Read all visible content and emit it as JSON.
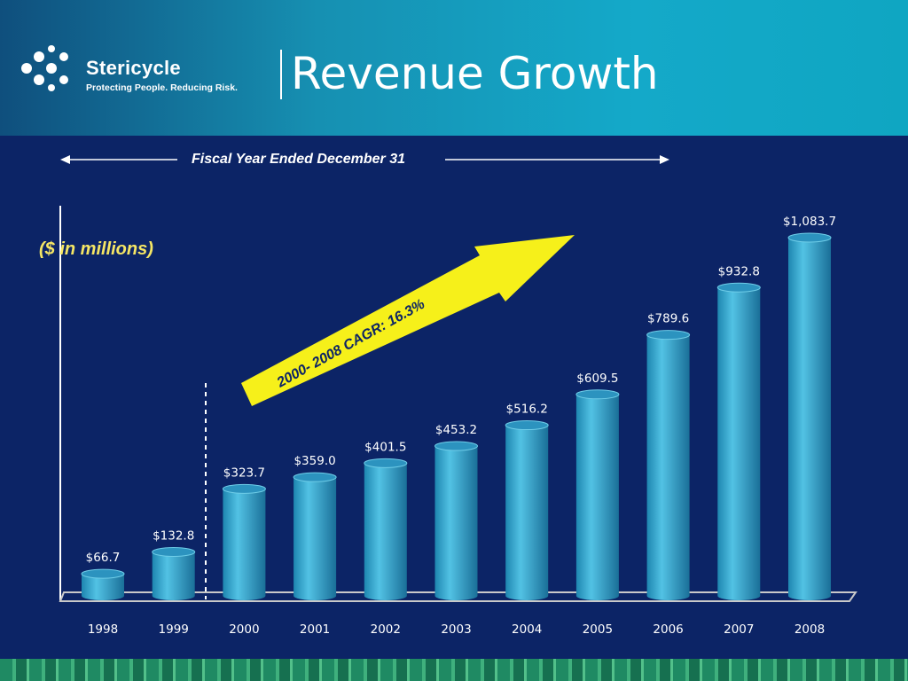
{
  "header": {
    "brand_name": "Stericycle",
    "tagline": "Protecting People. Reducing Risk.",
    "title": "Revenue Growth"
  },
  "colors": {
    "bar": "#3aa6cc",
    "arrow": "#f6f01a",
    "background": "#0c2466",
    "units_text": "#f5e664"
  },
  "chart_data": {
    "type": "bar",
    "title": "Revenue Growth",
    "x_caption": "Fiscal Year Ended December 31",
    "units": "($ in millions)",
    "categories": [
      "1998",
      "1999",
      "2000",
      "2001",
      "2002",
      "2003",
      "2004",
      "2005",
      "2006",
      "2007",
      "2008"
    ],
    "values": [
      66.7,
      132.8,
      323.7,
      359.0,
      401.5,
      453.2,
      516.2,
      609.5,
      789.6,
      932.8,
      1083.7
    ],
    "value_labels": [
      "$66.7",
      "$132.8",
      "$323.7",
      "$359.0",
      "$401.5",
      "$453.2",
      "$516.2",
      "$609.5",
      "$789.6",
      "$932.8",
      "$1,083.7"
    ],
    "annotation": "2000- 2008 CAGR: 16.3%",
    "ylim": [
      0,
      1083.7
    ],
    "grid": false,
    "bar_style": "3d-cylinder"
  }
}
